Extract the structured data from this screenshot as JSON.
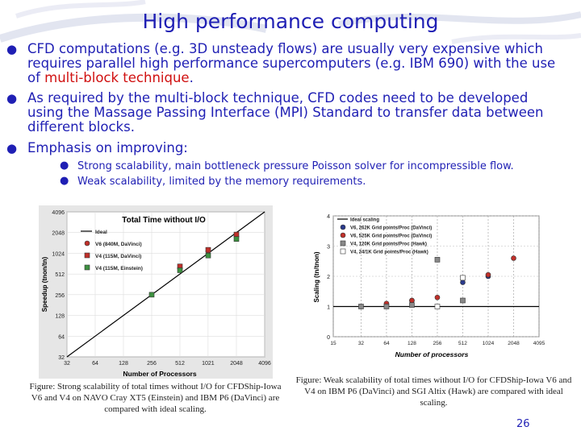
{
  "title": "High performance computing",
  "bullets": [
    {
      "parts": [
        "CFD computations (e.g. 3D unsteady flows) are usually very expensive which requires parallel high performance supercomputers (e.g. IBM 690) with the use of ",
        "multi-block technique",
        "."
      ]
    },
    {
      "text": "As required by the multi-block technique, CFD codes need to be developed using the Massage Passing Interface (MPI) Standard  to transfer data between different blocks."
    },
    {
      "text": "Emphasis on improving:"
    }
  ],
  "subbullets": [
    "Strong scalability, main bottleneck pressure Poisson solver for incompressible flow.",
    "Weak scalability, limited by the memory requirements."
  ],
  "captions": {
    "left": "Figure: Strong scalability of total times without I/O for CFDShip-Iowa V6 and V4 on NAVO Cray XT5 (Einstein) and IBM P6 (DaVinci) are compared with ideal scaling.",
    "right": "Figure: Weak scalability of total times without I/O for CFDShip-Iowa V6 and V4 on IBM P6 (DaVinci) and SGI Altix (Hawk) are compared with ideal scaling."
  },
  "page_number": "26",
  "colors": {
    "accent": "#1f1fb4",
    "highlight": "#d01010"
  },
  "chart_data": [
    {
      "type": "line",
      "title": "Total Time without I/O",
      "xlabel": "Number of Processors",
      "ylabel": "Speedup (tnon/tn)",
      "x_ticks": [
        "32",
        "64",
        "128",
        "256",
        "512",
        "1021",
        "2048",
        "4096"
      ],
      "y_ticks": [
        "32",
        "64",
        "128",
        "256",
        "512",
        "1024",
        "2048",
        "4096"
      ],
      "scale": "log2",
      "xlim": [
        32,
        4096
      ],
      "ylim": [
        32,
        4096
      ],
      "series": [
        {
          "name": "Ideal",
          "color": "#000000",
          "marker": "line",
          "x": [
            32,
            4096
          ],
          "y": [
            32,
            4096
          ]
        },
        {
          "name": "V6 (840M, DaVinci)",
          "color": "#c0302a",
          "marker": "circle",
          "x": [
            512,
            1024,
            2048
          ],
          "y": [
            620,
            1100,
            1800
          ]
        },
        {
          "name": "V4 (115M, DaVinci)",
          "color": "#c0302a",
          "marker": "square",
          "x": [
            512,
            1024,
            2048
          ],
          "y": [
            660,
            1150,
            1920
          ]
        },
        {
          "name": "V4 (115M, Einstein)",
          "color": "#3d9140",
          "marker": "square",
          "x": [
            256,
            512,
            1024,
            2048
          ],
          "y": [
            256,
            580,
            950,
            1650
          ]
        }
      ]
    },
    {
      "type": "line",
      "title": "",
      "xlabel": "Number of processors",
      "ylabel": "Scaling (tn/tnon)",
      "x_ticks": [
        "15",
        "32",
        "64",
        "128",
        "256",
        "512",
        "1024",
        "2048",
        "4095"
      ],
      "y_ticks": [
        "0",
        "1",
        "2",
        "3",
        "4"
      ],
      "ylim": [
        0,
        4
      ],
      "series": [
        {
          "name": "Ideal scaling",
          "color": "#000000",
          "marker": "line",
          "x": [
            15,
            4095
          ],
          "y": [
            1,
            1
          ]
        },
        {
          "name": "V6, 262K Grid points/Proc (DaVinci)",
          "color": "#2a3a8c",
          "marker": "circle",
          "x": [
            32,
            64,
            128,
            512,
            1024
          ],
          "y": [
            1.0,
            1.05,
            1.2,
            1.8,
            2.0
          ]
        },
        {
          "name": "V6, 525K Grid points/Proc (DaVinci)",
          "color": "#c0302a",
          "marker": "circle",
          "x": [
            64,
            128,
            256,
            1024,
            2048
          ],
          "y": [
            1.1,
            1.2,
            1.3,
            2.05,
            2.6
          ]
        },
        {
          "name": "V4, 120K Grid points/Proc (Hawk)",
          "color": "#888888",
          "marker": "square",
          "x": [
            32,
            64,
            128,
            256,
            512
          ],
          "y": [
            1.0,
            1.0,
            1.05,
            2.55,
            1.2
          ]
        },
        {
          "name": "V4, 24/1K Grid points/Proc (Hawk)",
          "color": "#ffffff",
          "marker": "square",
          "x": [
            256,
            512
          ],
          "y": [
            1.0,
            1.95
          ]
        }
      ]
    }
  ]
}
